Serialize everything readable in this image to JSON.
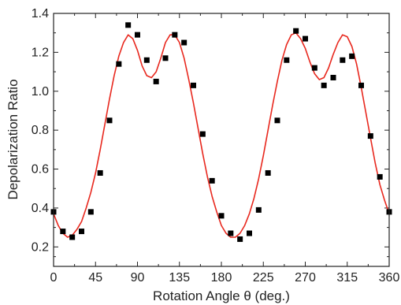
{
  "chart_data": {
    "type": "scatter",
    "title": "",
    "xlabel": "Rotation Angle θ (deg.)",
    "ylabel": "Depolarization Ratio",
    "xlim": [
      0,
      360
    ],
    "ylim": [
      0.1,
      1.4
    ],
    "x_ticks": [
      0,
      45,
      90,
      135,
      180,
      225,
      270,
      315,
      360
    ],
    "x_tick_labels": [
      "0",
      "45",
      "90",
      "135",
      "180",
      "225",
      "270",
      "315",
      "360"
    ],
    "y_ticks": [
      0.2,
      0.4,
      0.6,
      0.8,
      1.0,
      1.2,
      1.4
    ],
    "y_tick_labels": [
      "0.2",
      "0.4",
      "0.6",
      "0.8",
      "1.0",
      "1.2",
      "1.4"
    ],
    "grid": false,
    "legend": "none",
    "series": [
      {
        "kind": "scatter",
        "marker": "square",
        "color": "#000000",
        "x": [
          0,
          10,
          20,
          30,
          40,
          50,
          60,
          70,
          80,
          90,
          100,
          110,
          120,
          130,
          140,
          150,
          160,
          170,
          180,
          190,
          200,
          210,
          220,
          230,
          240,
          250,
          260,
          270,
          280,
          290,
          300,
          310,
          320,
          330,
          340,
          350,
          360
        ],
        "y": [
          0.38,
          0.28,
          0.25,
          0.28,
          0.38,
          0.58,
          0.85,
          1.14,
          1.34,
          1.29,
          1.16,
          1.05,
          1.17,
          1.29,
          1.25,
          1.03,
          0.78,
          0.54,
          0.36,
          0.27,
          0.24,
          0.27,
          0.39,
          0.58,
          0.85,
          1.16,
          1.31,
          1.27,
          1.12,
          1.03,
          1.07,
          1.16,
          1.18,
          1.03,
          0.77,
          0.56,
          0.38
        ]
      },
      {
        "kind": "line",
        "color": "#e8281e",
        "x": [
          0,
          5,
          10,
          15,
          20,
          25,
          30,
          35,
          40,
          45,
          50,
          55,
          60,
          65,
          70,
          75,
          80,
          85,
          90,
          95,
          100,
          105,
          110,
          115,
          120,
          125,
          130,
          135,
          140,
          145,
          150,
          155,
          160,
          165,
          170,
          175,
          180,
          185,
          190,
          195,
          200,
          205,
          210,
          215,
          220,
          225,
          230,
          235,
          240,
          245,
          250,
          255,
          260,
          265,
          270,
          275,
          280,
          285,
          290,
          295,
          300,
          305,
          310,
          315,
          320,
          325,
          330,
          335,
          340,
          345,
          350,
          355,
          360
        ],
        "y": [
          0.37,
          0.31,
          0.27,
          0.25,
          0.26,
          0.29,
          0.33,
          0.4,
          0.48,
          0.58,
          0.7,
          0.83,
          0.96,
          1.08,
          1.18,
          1.25,
          1.29,
          1.27,
          1.21,
          1.13,
          1.08,
          1.07,
          1.1,
          1.17,
          1.25,
          1.29,
          1.29,
          1.25,
          1.17,
          1.06,
          0.94,
          0.81,
          0.68,
          0.56,
          0.46,
          0.38,
          0.31,
          0.27,
          0.25,
          0.25,
          0.27,
          0.31,
          0.37,
          0.45,
          0.55,
          0.67,
          0.8,
          0.93,
          1.05,
          1.16,
          1.24,
          1.29,
          1.3,
          1.27,
          1.22,
          1.15,
          1.09,
          1.06,
          1.07,
          1.12,
          1.19,
          1.25,
          1.29,
          1.28,
          1.23,
          1.14,
          1.02,
          0.89,
          0.76,
          0.63,
          0.52,
          0.44,
          0.37
        ]
      }
    ]
  }
}
